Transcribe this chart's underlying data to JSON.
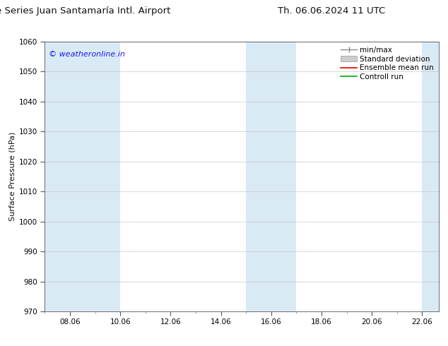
{
  "title_left": "ENS Time Series Juan Santamaría Intl. Airport",
  "title_right": "Th. 06.06.2024 11 UTC",
  "ylabel": "Surface Pressure (hPa)",
  "ylim": [
    970,
    1060
  ],
  "yticks": [
    970,
    980,
    990,
    1000,
    1010,
    1020,
    1030,
    1040,
    1050,
    1060
  ],
  "xtick_positions": [
    8,
    10,
    12,
    14,
    16,
    18,
    20,
    22
  ],
  "xtick_labels": [
    "08.06",
    "10.06",
    "12.06",
    "14.06",
    "16.06",
    "18.06",
    "20.06",
    "22.06"
  ],
  "xlim": [
    7.0,
    22.67
  ],
  "shaded_bands": [
    {
      "x_start": 7.0,
      "x_end": 10.0
    },
    {
      "x_start": 15.0,
      "x_end": 17.0
    },
    {
      "x_start": 22.0,
      "x_end": 22.67
    }
  ],
  "shaded_color": "#daeaf5",
  "background_color": "#ffffff",
  "plot_bg_color": "#ffffff",
  "grid_color": "#bbbbbb",
  "watermark_text": "© weatheronline.in",
  "watermark_color": "#1a1aff",
  "legend_entries": [
    {
      "label": "min/max",
      "color": "#999999",
      "style": "errorbar"
    },
    {
      "label": "Standard deviation",
      "color": "#cccccc",
      "style": "box"
    },
    {
      "label": "Ensemble mean run",
      "color": "#dd0000",
      "style": "line"
    },
    {
      "label": "Controll run",
      "color": "#00aa00",
      "style": "line"
    }
  ],
  "title_fontsize": 9.5,
  "ylabel_fontsize": 8,
  "tick_fontsize": 7.5,
  "legend_fontsize": 7.5,
  "watermark_fontsize": 8
}
